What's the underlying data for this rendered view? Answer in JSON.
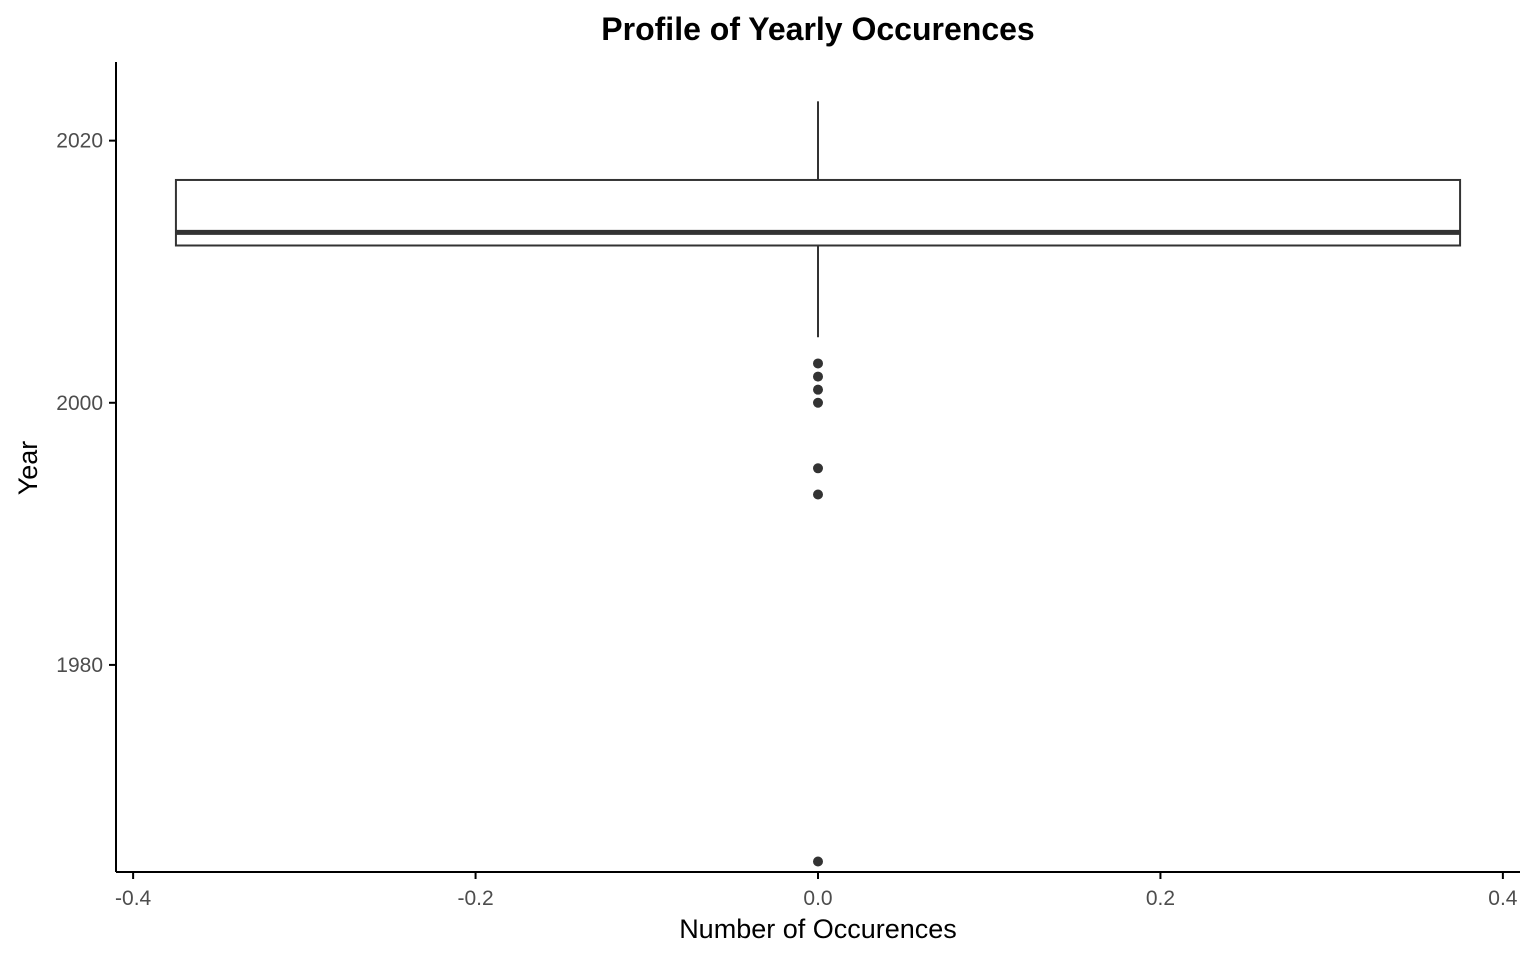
{
  "chart_data": {
    "type": "boxplot",
    "title": "Profile of Yearly Occurences",
    "xlabel": "Number of Occurences",
    "ylabel": "Year",
    "xlim": [
      -0.41,
      0.41
    ],
    "ylim": [
      1964.2,
      2026
    ],
    "x_ticks": [
      -0.4,
      -0.2,
      0.0,
      0.2,
      0.4
    ],
    "x_tick_labels": [
      "-0.4",
      "-0.2",
      "0.0",
      "0.2",
      "0.4"
    ],
    "y_ticks": [
      1980,
      2000,
      2020
    ],
    "y_tick_labels": [
      "1980",
      "2000",
      "2020"
    ],
    "grid": false,
    "box": {
      "x_center": 0.0,
      "x_left": -0.375,
      "x_right": 0.375,
      "q1": 2012,
      "median": 2013,
      "q3": 2017,
      "whisker_low": 2005,
      "whisker_high": 2023
    },
    "outliers": [
      {
        "x": 0.0,
        "y": 2003
      },
      {
        "x": 0.0,
        "y": 2002
      },
      {
        "x": 0.0,
        "y": 2001
      },
      {
        "x": 0.0,
        "y": 2000
      },
      {
        "x": 0.0,
        "y": 1995
      },
      {
        "x": 0.0,
        "y": 1993
      },
      {
        "x": 0.0,
        "y": 1965
      }
    ],
    "colors": {
      "box_line": "#333333",
      "median_line": "#333333",
      "outlier_fill": "#333333",
      "axis_line": "#000000",
      "tick_label": "#4d4d4d",
      "text": "#000000",
      "background": "#ffffff"
    }
  }
}
